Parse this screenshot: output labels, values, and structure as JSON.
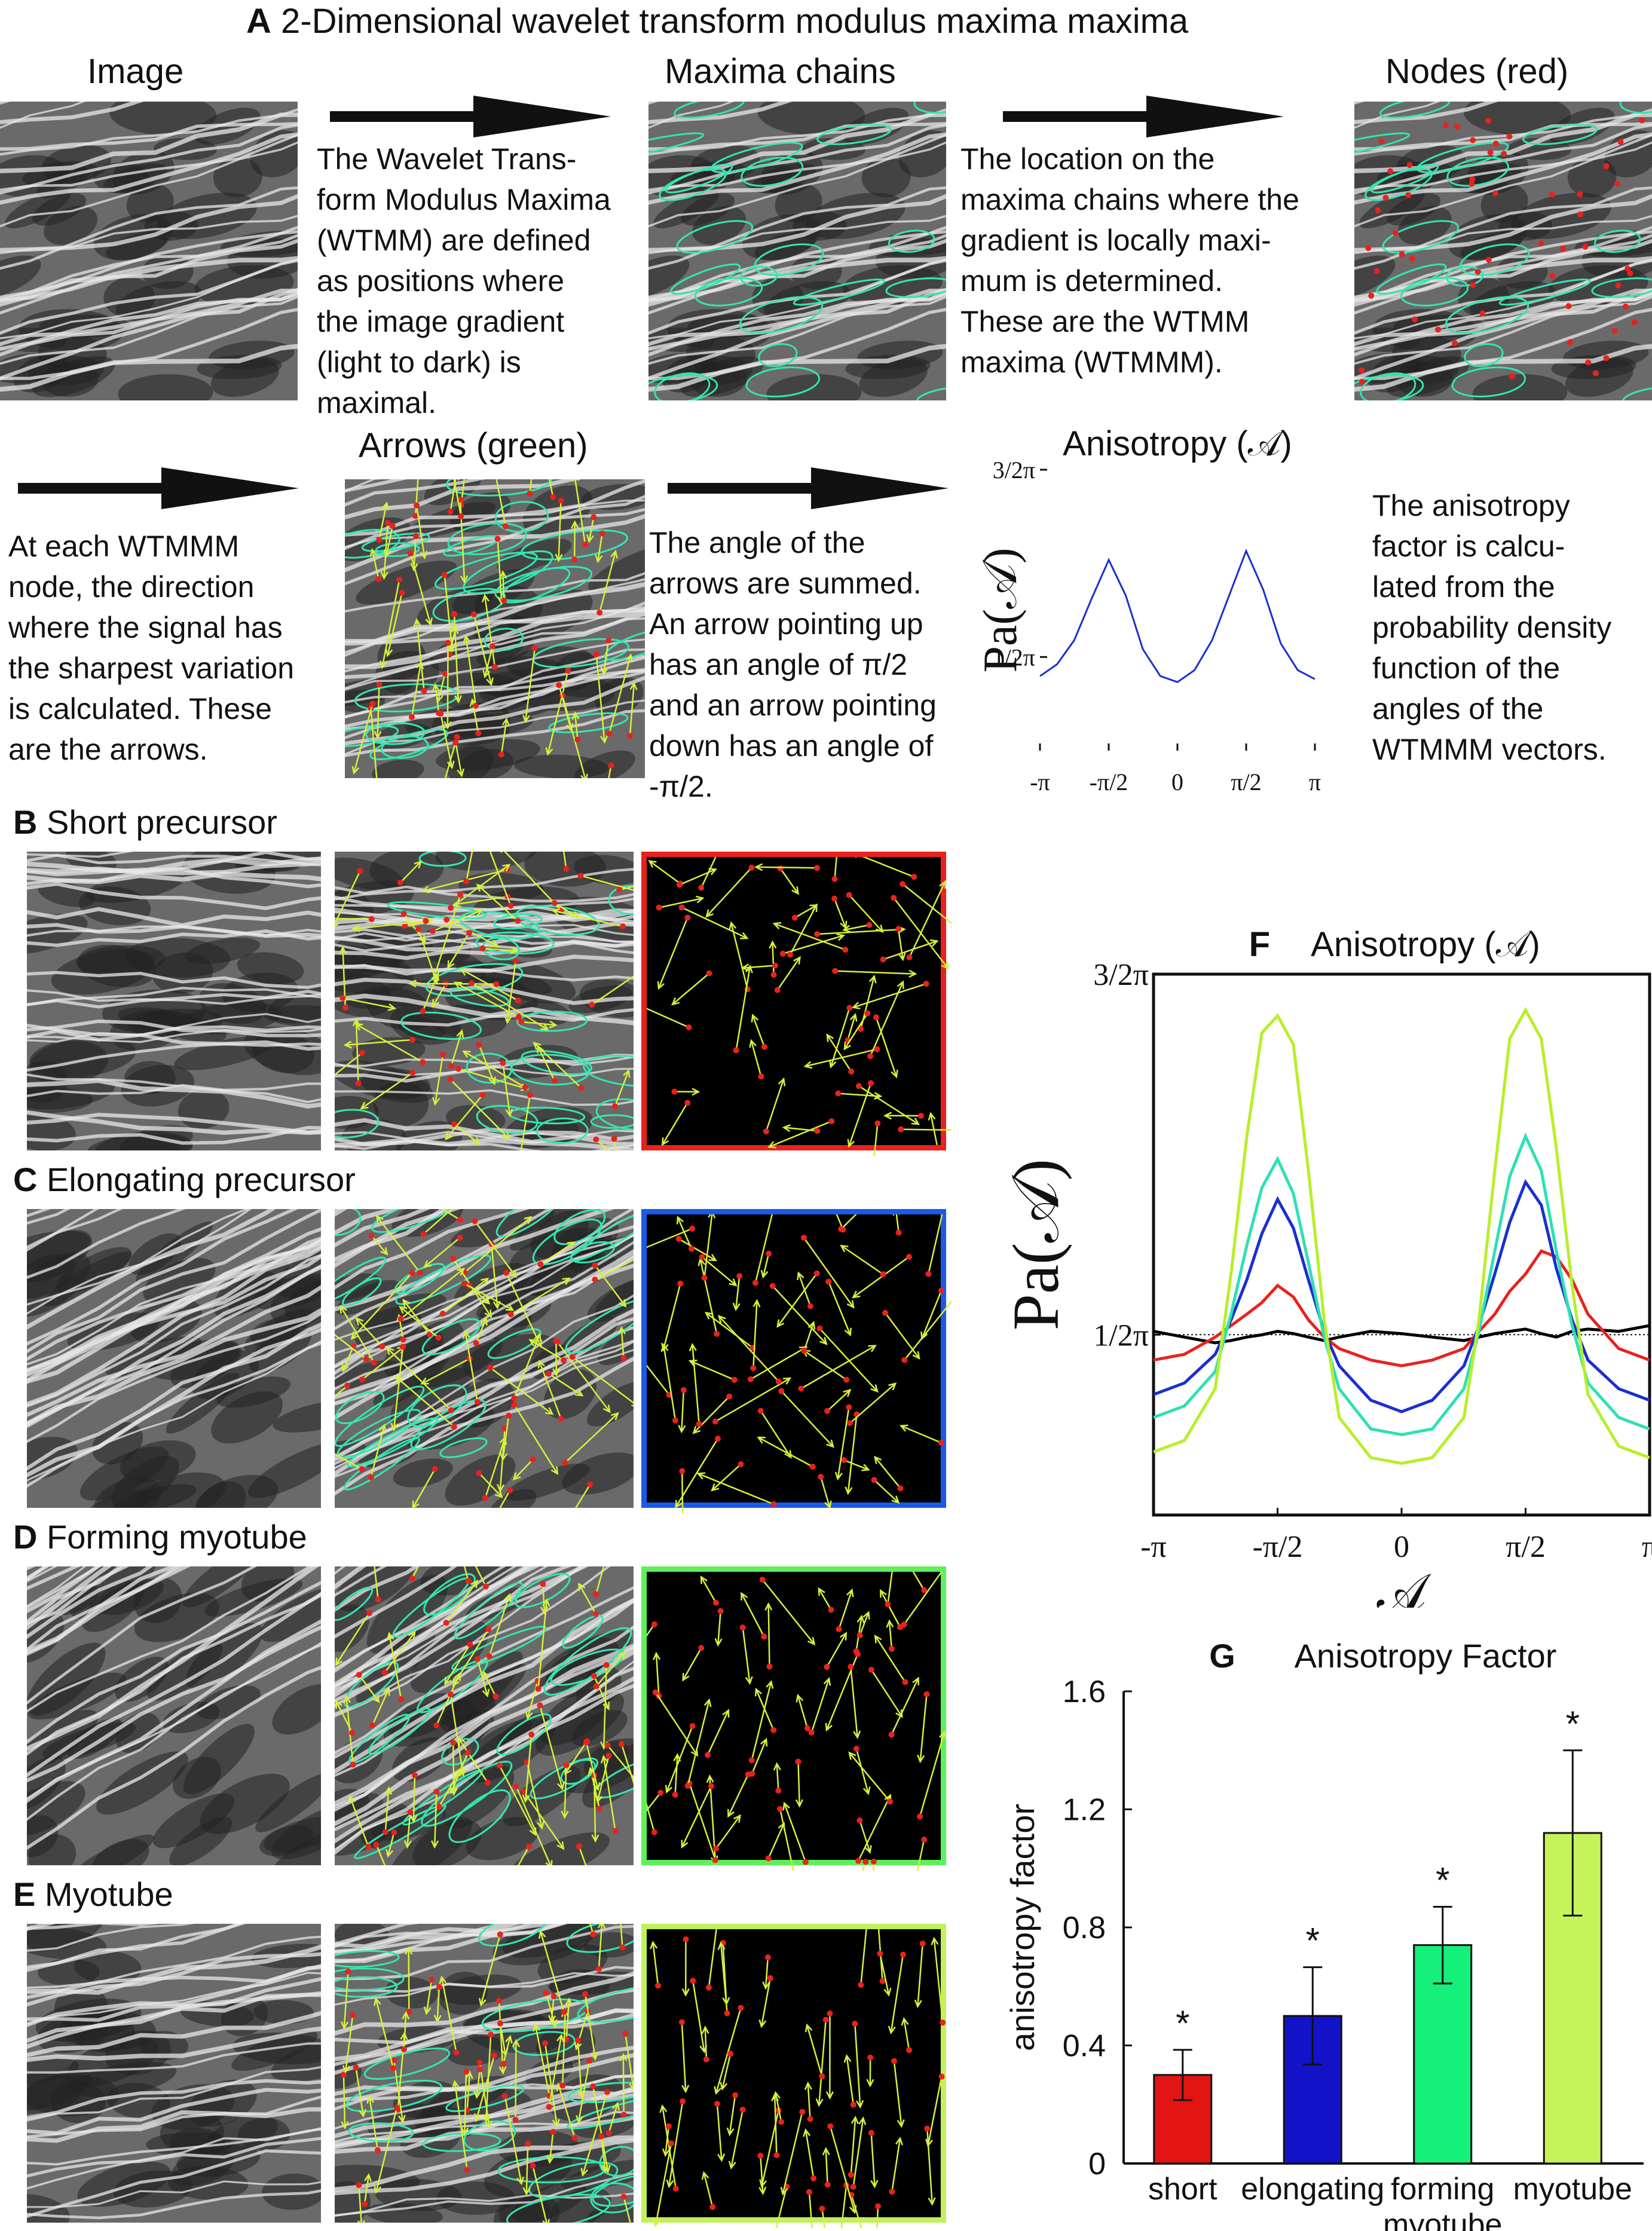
{
  "panelA": {
    "title": "A 2-Dimensional wavelet transform modulus maxima maxima",
    "headers": {
      "image": "Image",
      "chains": "Maxima chains",
      "nodes": "Nodes (red)",
      "arrows": "Arrows (green)",
      "aniso": "Anisotropy (𝒜)"
    },
    "text1": [
      "The Wavelet Trans-",
      "form Modulus Maxima",
      "(WTMM) are defined",
      "as positions where",
      "the image gradient",
      "(light to dark) is",
      "maximal."
    ],
    "text2": [
      "The location on the",
      "maxima chains where the",
      "gradient is locally maxi-",
      "mum is determined.",
      "These are the WTMM",
      "maxima (WTMMM)."
    ],
    "text3": [
      "At each WTMMM",
      "node, the direction",
      "where the signal has",
      "the sharpest variation",
      "is calculated. These",
      "are the arrows."
    ],
    "text4": [
      "The angle of the",
      "arrows are summed.",
      "An arrow pointing up",
      "has an angle of π/2",
      "and an arrow pointing",
      "down has an angle of",
      "-π/2."
    ],
    "text5": [
      "The anisotropy",
      "factor is calcu-",
      "lated from the",
      "probability density",
      "function of the",
      "angles of the",
      "WTMMM vectors."
    ]
  },
  "panels": [
    {
      "letter": "B",
      "name": "Short precursor"
    },
    {
      "letter": "C",
      "name": "Elongating precursor"
    },
    {
      "letter": "D",
      "name": "Forming myotube"
    },
    {
      "letter": "E",
      "name": "Myotube"
    }
  ],
  "chart_data": [
    {
      "type": "line",
      "panel": "A",
      "title": "Anisotropy (𝒜)",
      "ylabel": "P_a(𝒜)",
      "x_ticks": [
        "-π",
        "-π/2",
        "0",
        "π/2",
        "π"
      ],
      "y_ticks": [
        "1/2π",
        "3/2π"
      ],
      "xlim": [
        -3.1416,
        3.1416
      ],
      "ylim": [
        0,
        4.712
      ],
      "series": [
        {
          "color": "#1a2fd0",
          "x": [
            -3.14,
            -2.75,
            -2.36,
            -1.96,
            -1.57,
            -1.18,
            -0.79,
            -0.39,
            0,
            0.39,
            0.79,
            1.18,
            1.57,
            1.96,
            2.36,
            2.75,
            3.14
          ],
          "y": [
            1.25,
            1.45,
            1.85,
            2.55,
            3.2,
            2.6,
            1.7,
            1.25,
            1.15,
            1.35,
            1.85,
            2.6,
            3.35,
            2.7,
            1.8,
            1.35,
            1.2
          ]
        }
      ]
    },
    {
      "type": "line",
      "panel": "F",
      "title": "Anisotropy (𝒜)",
      "xlabel": "𝒜",
      "ylabel": "P_a(𝒜)",
      "x_ticks": [
        "-π",
        "-π/2",
        "0",
        "π/2",
        "π"
      ],
      "y_ticks": [
        "1/2π",
        "3/2π"
      ],
      "xlim": [
        -3.1416,
        3.1416
      ],
      "ylim": [
        0,
        4.712
      ],
      "reference_line": 1.571,
      "x": [
        -3.14,
        -2.75,
        -2.36,
        -2.16,
        -1.96,
        -1.77,
        -1.57,
        -1.37,
        -1.18,
        -0.98,
        -0.79,
        -0.39,
        0,
        0.39,
        0.79,
        0.98,
        1.18,
        1.37,
        1.57,
        1.77,
        1.96,
        2.16,
        2.36,
        2.75,
        3.14
      ],
      "series": [
        {
          "color": "#000000",
          "y": [
            1.6,
            1.55,
            1.5,
            1.52,
            1.55,
            1.57,
            1.6,
            1.58,
            1.55,
            1.52,
            1.55,
            1.6,
            1.58,
            1.55,
            1.52,
            1.55,
            1.58,
            1.6,
            1.62,
            1.58,
            1.55,
            1.6,
            1.62,
            1.6,
            1.65
          ]
        },
        {
          "color": "#e8221e",
          "y": [
            1.35,
            1.4,
            1.55,
            1.65,
            1.75,
            1.85,
            2.0,
            1.9,
            1.7,
            1.55,
            1.45,
            1.35,
            1.3,
            1.35,
            1.45,
            1.6,
            1.75,
            1.95,
            2.1,
            2.3,
            2.25,
            2.05,
            1.75,
            1.45,
            1.35
          ]
        },
        {
          "color": "#1a2fd0",
          "y": [
            1.05,
            1.15,
            1.4,
            1.7,
            2.05,
            2.45,
            2.75,
            2.5,
            2.05,
            1.6,
            1.3,
            1.0,
            0.9,
            1.0,
            1.3,
            1.65,
            2.1,
            2.55,
            2.9,
            2.7,
            2.15,
            1.7,
            1.35,
            1.1,
            1.0
          ]
        },
        {
          "color": "#2ee0b4",
          "y": [
            0.85,
            0.95,
            1.25,
            1.75,
            2.35,
            2.85,
            3.1,
            2.8,
            2.2,
            1.55,
            1.1,
            0.75,
            0.7,
            0.75,
            1.1,
            1.6,
            2.3,
            2.95,
            3.3,
            3.0,
            2.3,
            1.65,
            1.15,
            0.85,
            0.75
          ]
        },
        {
          "color": "#b7ef2a",
          "y": [
            0.55,
            0.65,
            1.1,
            2.1,
            3.3,
            4.2,
            4.35,
            4.1,
            3.0,
            1.7,
            0.85,
            0.5,
            0.45,
            0.5,
            0.85,
            1.7,
            3.0,
            4.15,
            4.4,
            4.15,
            3.2,
            2.0,
            1.05,
            0.6,
            0.5
          ]
        }
      ]
    },
    {
      "type": "bar",
      "panel": "G",
      "title": "Anisotropy Factor",
      "ylabel": "anisotropy factor",
      "categories": [
        "short",
        "elongating",
        "forming myotube",
        "myotube"
      ],
      "values": [
        0.3,
        0.5,
        0.74,
        1.12
      ],
      "errors": [
        0.085,
        0.165,
        0.13,
        0.28
      ],
      "colors": [
        "#e31414",
        "#1212c8",
        "#14f07a",
        "#c5f45a"
      ],
      "y_ticks": [
        "0",
        "0.4",
        "0.8",
        "1.2",
        "1.6"
      ],
      "ylim": [
        0,
        1.6
      ],
      "markers": [
        "*",
        "*",
        "*",
        "*"
      ]
    }
  ]
}
